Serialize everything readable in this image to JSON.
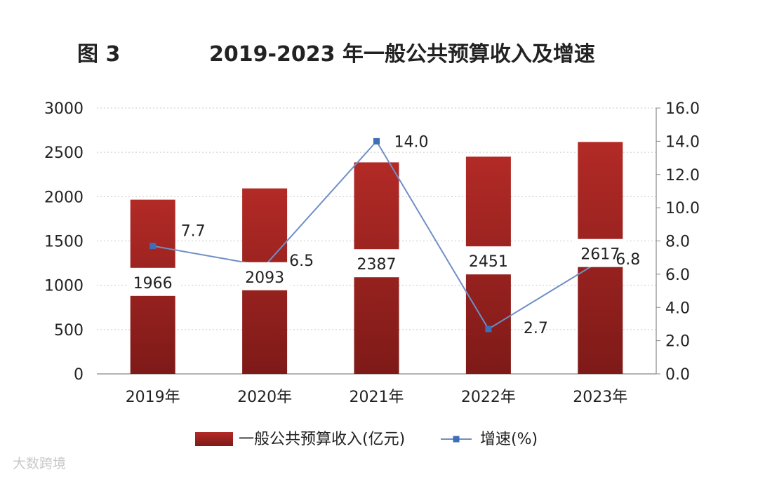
{
  "figure_label": "图 3",
  "watermark": "大数跨境",
  "chart_data": {
    "type": "bar",
    "title": "2019-2023 年一般公共预算收入及增速",
    "categories": [
      "2019年",
      "2020年",
      "2021年",
      "2022年",
      "2023年"
    ],
    "series": [
      {
        "name": "一般公共预算收入(亿元)",
        "type": "bar",
        "axis": "left",
        "values": [
          1966,
          2093,
          2387,
          2451,
          2617
        ],
        "labels": [
          "1966",
          "2093",
          "2387",
          "2451",
          "2617"
        ]
      },
      {
        "name": "增速(%)",
        "type": "line",
        "axis": "right",
        "values": [
          7.7,
          6.5,
          14.0,
          2.7,
          6.8
        ],
        "labels": [
          "7.7",
          "6.5",
          "14.0",
          "2.7",
          "6.8"
        ]
      }
    ],
    "y_left": {
      "min": 0,
      "max": 3000,
      "ticks": [
        "0",
        "500",
        "1000",
        "1500",
        "2000",
        "2500",
        "3000"
      ]
    },
    "y_right": {
      "min": 0,
      "max": 16,
      "ticks": [
        "0.0",
        "2.0",
        "4.0",
        "6.0",
        "8.0",
        "10.0",
        "12.0",
        "14.0",
        "16.0"
      ]
    },
    "grid": true,
    "legend_position": "bottom",
    "colors": {
      "bar": "#b22a26",
      "bar_dark": "#7e1a18",
      "line": "#6f8fc6",
      "marker": "#3d6fb7"
    }
  }
}
